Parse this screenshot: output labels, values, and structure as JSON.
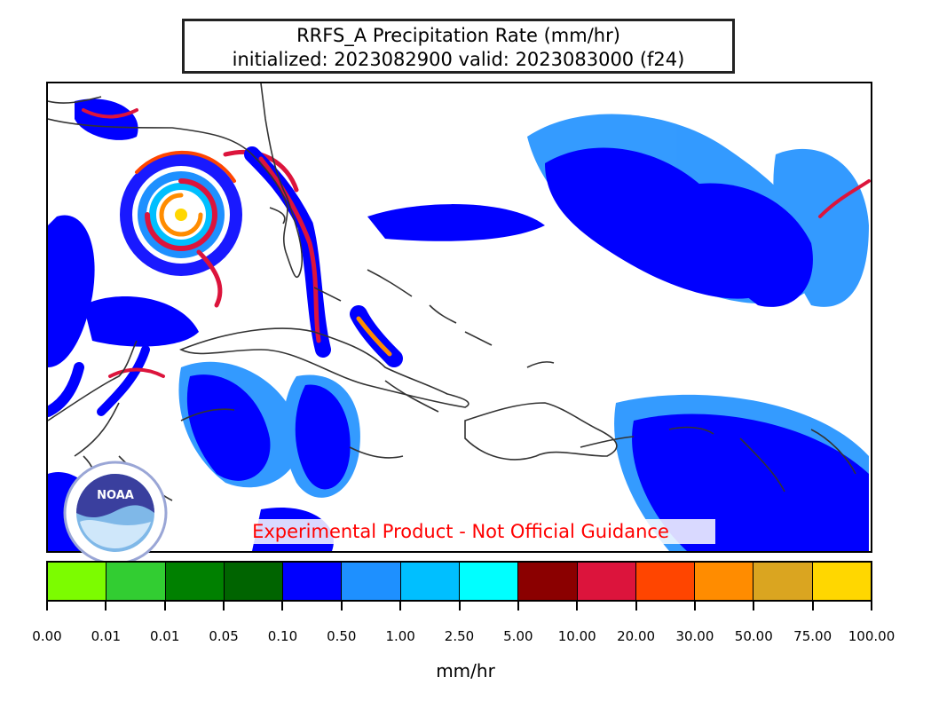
{
  "title": {
    "line1": "RRFS_A Precipitation Rate (mm/hr)",
    "line2": "initialized: 2023082900 valid: 2023083000 (f24)"
  },
  "disclaimer": "Experimental Product - Not Official Guidance",
  "logo": {
    "icon": "noaa-logo-icon",
    "text": "NOAA"
  },
  "colorbar": {
    "unit": "mm/hr",
    "ticks": [
      "0.00",
      "0.01",
      "0.01",
      "0.05",
      "0.10",
      "0.50",
      "1.00",
      "2.50",
      "5.00",
      "10.00",
      "20.00",
      "30.00",
      "50.00",
      "75.00",
      "100.00"
    ],
    "colors": [
      "#7cfc00",
      "#32cd32",
      "#008000",
      "#006400",
      "#0000ff",
      "#1e90ff",
      "#00bfff",
      "#00ffff",
      "#8b0000",
      "#dc143c",
      "#ff4500",
      "#ff8c00",
      "#daa520",
      "#ffd700"
    ]
  }
}
